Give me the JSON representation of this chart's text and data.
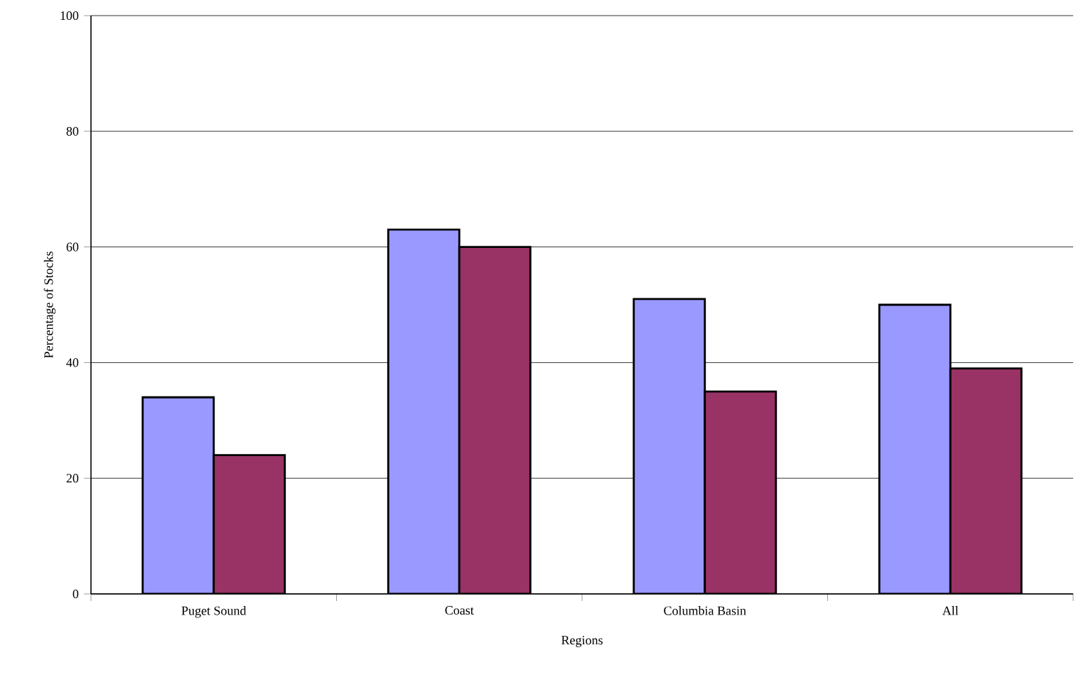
{
  "chart_data": {
    "type": "bar",
    "categories": [
      "Puget Sound",
      "Coast",
      "Columbia Basin",
      "All"
    ],
    "series": [
      {
        "color": "#9999ff",
        "values": [
          34,
          63,
          51,
          50
        ]
      },
      {
        "color": "#993366",
        "values": [
          24,
          60,
          35,
          39
        ]
      }
    ],
    "xlabel": "Regions",
    "ylabel": "Percentage of Stocks",
    "ylim": [
      0,
      100
    ],
    "yticks": [
      0,
      20,
      40,
      60,
      80,
      100
    ],
    "grid": "y"
  }
}
